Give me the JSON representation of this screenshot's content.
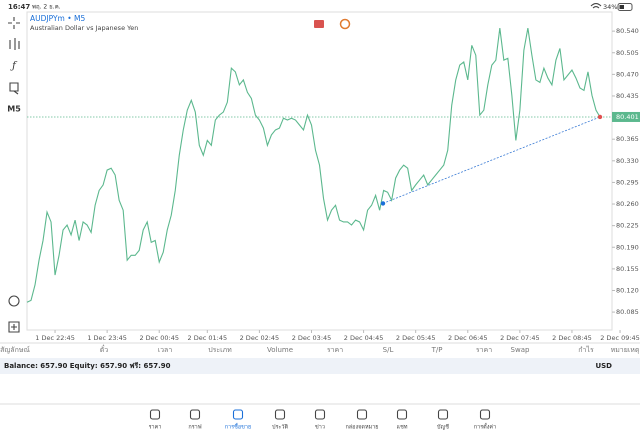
{
  "status_bar": {
    "time": "16:47",
    "date": "พฤ. 2 ธ.ค.",
    "battery": "34%"
  },
  "toolbar": {
    "timeframe": "M5"
  },
  "chart_data": {
    "type": "line",
    "title": "AUDJPYm • M5",
    "subtitle": "Australian Dollar vs Japanese Yen",
    "color": "#5cb88e",
    "categories": [
      null,
      null,
      null,
      null,
      null,
      null,
      null,
      "1 Dec 22:45",
      null,
      null,
      null,
      null,
      null,
      null,
      null,
      null,
      null,
      null,
      null,
      null,
      "1 Dec 23:45",
      null,
      null,
      null,
      null,
      null,
      null,
      null,
      null,
      null,
      null,
      null,
      null,
      "2 Dec 00:45",
      null,
      null,
      null,
      null,
      null,
      null,
      null,
      null,
      null,
      null,
      null,
      "2 Dec 01:45",
      null,
      null,
      null,
      null,
      null,
      null,
      null,
      null,
      null,
      null,
      null,
      null,
      "2 Dec 02:45",
      null,
      null,
      null,
      null,
      null,
      null,
      null,
      null,
      null,
      null,
      null,
      null,
      "2 Dec 03:45",
      null,
      null,
      null,
      null,
      null,
      null,
      null,
      null,
      null,
      null,
      null,
      null,
      "2 Dec 04:45",
      null,
      null,
      null,
      null,
      null,
      null,
      null,
      null,
      null,
      null,
      null,
      null,
      "2 Dec 05:45",
      null,
      null,
      null,
      null,
      null,
      null,
      null,
      null,
      null,
      null,
      null,
      null,
      "2 Dec 06:45",
      null,
      null,
      null,
      null,
      null,
      null,
      null,
      null,
      null,
      null,
      null,
      null,
      "2 Dec 07:45",
      null,
      null,
      null,
      null,
      null,
      null,
      null,
      null,
      null,
      null,
      null,
      null,
      "2 Dec 08:45",
      null,
      null,
      null,
      null,
      null,
      null,
      null,
      null,
      null,
      null,
      null,
      "2 Dec 09:45"
    ],
    "values": [
      80.101,
      80.104,
      80.129,
      80.169,
      80.201,
      80.247,
      80.231,
      80.145,
      80.177,
      80.218,
      80.226,
      80.21,
      80.234,
      80.201,
      80.231,
      80.226,
      80.214,
      80.258,
      80.282,
      80.291,
      80.315,
      80.318,
      80.307,
      80.266,
      80.25,
      80.169,
      80.177,
      80.177,
      80.185,
      80.218,
      80.231,
      80.198,
      80.201,
      80.166,
      80.182,
      80.218,
      80.242,
      80.282,
      80.339,
      80.38,
      80.412,
      80.428,
      80.409,
      80.355,
      80.339,
      80.363,
      80.355,
      80.396,
      80.404,
      80.409,
      80.425,
      80.48,
      80.474,
      80.453,
      80.461,
      80.441,
      80.431,
      80.404,
      80.396,
      80.383,
      80.355,
      80.372,
      80.38,
      80.383,
      80.399,
      80.396,
      80.399,
      80.396,
      80.388,
      80.38,
      80.404,
      80.388,
      80.347,
      80.323,
      80.269,
      80.234,
      80.25,
      80.258,
      80.234,
      80.231,
      80.231,
      80.226,
      80.234,
      80.231,
      80.218,
      80.25,
      80.258,
      80.274,
      80.25,
      80.282,
      80.279,
      80.266,
      80.302,
      80.315,
      80.323,
      80.318,
      80.282,
      80.291,
      80.299,
      80.307,
      80.291,
      80.299,
      80.307,
      80.315,
      80.323,
      80.347,
      80.42,
      80.461,
      80.485,
      80.49,
      80.461,
      80.517,
      80.501,
      80.404,
      80.412,
      80.453,
      80.485,
      80.493,
      80.545,
      80.493,
      80.496,
      80.436,
      80.363,
      80.412,
      80.509,
      80.545,
      80.501,
      80.461,
      80.457,
      80.48,
      80.464,
      80.453,
      80.493,
      80.512,
      80.461,
      80.469,
      80.477,
      80.464,
      80.448,
      80.444,
      80.474,
      80.436,
      80.412,
      80.401,
      null,
      null,
      null,
      null,
      null
    ],
    "ylim": [
      80.056,
      80.571
    ],
    "yticks": [
      {
        "value": 80.54,
        "label": "80.540"
      },
      80.505,
      {
        "value": 80.47,
        "label": "80.470"
      },
      80.435,
      80.365,
      {
        "value": 80.33,
        "label": "80.330"
      },
      80.295,
      {
        "value": 80.26,
        "label": "80.260"
      },
      80.225,
      {
        "value": 80.19,
        "label": "80.190"
      },
      80.155,
      {
        "value": 80.12,
        "label": "80.120"
      },
      80.085
    ],
    "current_price": 80.401,
    "open_price": 80.261
  },
  "table": {
    "columns": [
      "สัญลักษณ์",
      "ตั๋ว",
      "เวลา",
      "ประเภท",
      "Volume",
      "ราคา",
      "S/L",
      "T/P",
      "ราคา",
      "Swap",
      "กำไร",
      "หมายเหตุ"
    ]
  },
  "account": {
    "summary": "Balance: 657.90 Equity: 657.90 ฟรี: 657.90",
    "currency": "USD"
  },
  "tabs": [
    "ราคา",
    "กราฟ",
    "การซื้อขาย",
    "ประวัติ",
    "ข่าว",
    "กล่องจดหมาย",
    "แชท",
    "บัญชี",
    "การตั้งค่า"
  ],
  "active_tab": 2
}
